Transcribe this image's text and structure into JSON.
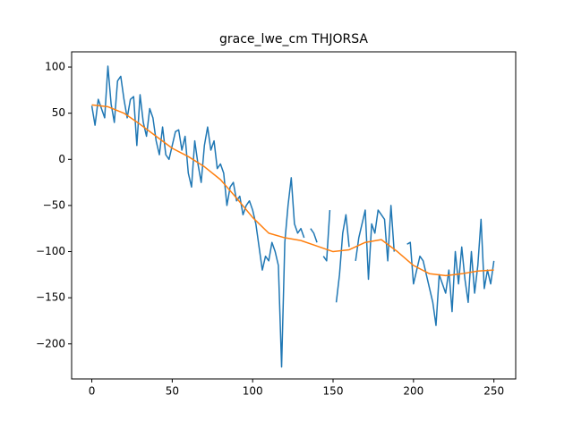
{
  "chart_data": {
    "type": "line",
    "title": "grace_lwe_cm THJORSA",
    "series": [
      {
        "color": "#1f77b4",
        "x": [
          0,
          2,
          4,
          6,
          8,
          10,
          12,
          14,
          16,
          18,
          20,
          22,
          24,
          26,
          28,
          30,
          32,
          34,
          36,
          38,
          40,
          42,
          44,
          46,
          48,
          50,
          52,
          54,
          56,
          58,
          60,
          62,
          64,
          66,
          68,
          70,
          72,
          74,
          76,
          78,
          80,
          82,
          84,
          86,
          88,
          90,
          92,
          94,
          96,
          98,
          100,
          102,
          104,
          106,
          108,
          110,
          112,
          114,
          116,
          118,
          120,
          122,
          124,
          126,
          128,
          130,
          132,
          134,
          136,
          138,
          140,
          142,
          144,
          146,
          148,
          150,
          152,
          154,
          156,
          158,
          160,
          162,
          164,
          166,
          168,
          170,
          172,
          174,
          176,
          178,
          180,
          182,
          184,
          186,
          188,
          190,
          192,
          194,
          196,
          198,
          200,
          202,
          204,
          206,
          208,
          210,
          212,
          214,
          216,
          218,
          220,
          222,
          224,
          226,
          228,
          230,
          232,
          234,
          236,
          238,
          240,
          242,
          244,
          246,
          248,
          250
        ],
        "values": [
          58,
          37,
          65,
          55,
          45,
          101,
          60,
          40,
          85,
          90,
          65,
          45,
          65,
          68,
          15,
          70,
          40,
          25,
          55,
          45,
          20,
          5,
          35,
          5,
          0,
          15,
          30,
          32,
          10,
          25,
          -15,
          -30,
          20,
          -5,
          -25,
          15,
          35,
          10,
          20,
          -10,
          -5,
          -15,
          -50,
          -30,
          -25,
          -45,
          -40,
          -60,
          -50,
          -45,
          -55,
          -70,
          -95,
          -120,
          -105,
          -110,
          -90,
          -100,
          -115,
          -225,
          -90,
          -50,
          -20,
          -70,
          -80,
          -75,
          -85,
          null,
          -75,
          -80,
          -90,
          null,
          -105,
          -110,
          -55,
          null,
          -155,
          -125,
          -80,
          -60,
          -95,
          null,
          -110,
          -85,
          -70,
          -55,
          -130,
          -70,
          -80,
          -55,
          -60,
          -65,
          -110,
          -50,
          -100,
          null,
          null,
          null,
          -92,
          -90,
          -135,
          -120,
          -105,
          -110,
          -125,
          -140,
          -155,
          -180,
          -125,
          -135,
          -145,
          -120,
          -165,
          -100,
          -135,
          -95,
          -130,
          -155,
          -100,
          -145,
          -115,
          -65,
          -140,
          -120,
          -135,
          -110
        ]
      },
      {
        "color": "#ff7f0e",
        "x": [
          0,
          10,
          20,
          30,
          40,
          50,
          60,
          70,
          80,
          90,
          100,
          110,
          120,
          130,
          140,
          150,
          160,
          170,
          180,
          190,
          200,
          210,
          220,
          230,
          240,
          250
        ],
        "values": [
          59,
          57,
          50,
          38,
          25,
          12,
          3,
          -8,
          -22,
          -42,
          -63,
          -80,
          -85,
          -88,
          -94,
          -100,
          -98,
          -90,
          -87,
          -100,
          -115,
          -124,
          -126,
          -124,
          -121,
          -120
        ]
      }
    ],
    "xlim": [
      -12.55,
      263.55
    ],
    "ylim": [
      -238,
      116.5
    ],
    "xticks": [
      0,
      50,
      100,
      150,
      200,
      250
    ],
    "yticks": [
      {
        "value": -200,
        "label": "−200"
      },
      {
        "value": -150,
        "label": "−150"
      },
      {
        "value": -100,
        "label": "−100"
      },
      {
        "value": -50,
        "label": "−50"
      },
      0,
      50,
      100
    ]
  }
}
